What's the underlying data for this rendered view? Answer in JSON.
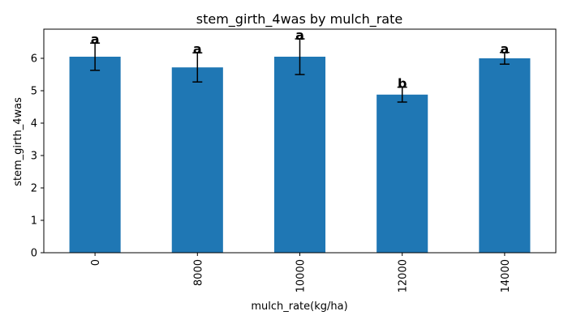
{
  "chart_data": {
    "type": "bar",
    "title": "stem_girth_4was by mulch_rate",
    "xlabel": "mulch_rate(kg/ha)",
    "ylabel": "stem_girth_4was",
    "categories": [
      "0",
      "8000",
      "10000",
      "12000",
      "14000"
    ],
    "values": [
      6.05,
      5.72,
      6.05,
      4.88,
      6.0
    ],
    "error": [
      0.42,
      0.45,
      0.55,
      0.23,
      0.18
    ],
    "letters": [
      "a",
      "a",
      "a",
      "b",
      "a"
    ],
    "ylim": [
      0,
      6.9
    ],
    "yticks": [
      0,
      1,
      2,
      3,
      4,
      5,
      6
    ],
    "xtick_rotation": 90,
    "grid": false,
    "bar_color": "#1f77b4",
    "error_color": "#000000"
  }
}
